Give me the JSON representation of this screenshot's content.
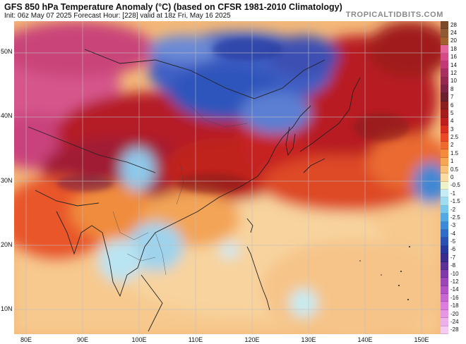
{
  "header": {
    "title": "GFS 850 hPa Temperature Anomaly (°C) (based on CFSR 1981-2010 Climatology)",
    "subtitle": "Init: 06z May 07 2025   Forecast Hour: [228]   valid at 18z Fri, May 16 2025",
    "brand": "TROPICALTIDBITS.COM"
  },
  "map": {
    "lat_labels": [
      "50N",
      "40N",
      "30N",
      "20N",
      "10N"
    ],
    "lon_labels": [
      "80E",
      "90E",
      "100E",
      "110E",
      "120E",
      "130E",
      "140E",
      "150E"
    ]
  },
  "colorbar": {
    "levels": [
      {
        "label": "28",
        "color": "#7a4a2a"
      },
      {
        "label": "24",
        "color": "#8f5a34"
      },
      {
        "label": "20",
        "color": "#a06030"
      },
      {
        "label": "18",
        "color": "#e2669a"
      },
      {
        "label": "16",
        "color": "#d54b86"
      },
      {
        "label": "14",
        "color": "#c23a73"
      },
      {
        "label": "12",
        "color": "#a8305f"
      },
      {
        "label": "10",
        "color": "#93294f"
      },
      {
        "label": "8",
        "color": "#7d2343"
      },
      {
        "label": "7",
        "color": "#6a1f2e"
      },
      {
        "label": "6",
        "color": "#8a1f1f"
      },
      {
        "label": "5",
        "color": "#a31d1d"
      },
      {
        "label": "4",
        "color": "#bd1f1f"
      },
      {
        "label": "3",
        "color": "#d7301f"
      },
      {
        "label": "2.5",
        "color": "#e84a25"
      },
      {
        "label": "2",
        "color": "#ef6a2e"
      },
      {
        "label": "1.5",
        "color": "#f48a3c"
      },
      {
        "label": "1",
        "color": "#f7a653"
      },
      {
        "label": "0.5",
        "color": "#f9c27a"
      },
      {
        "label": "0",
        "color": "#fbdba4"
      },
      {
        "label": "-0.5",
        "color": "#eef2c8"
      },
      {
        "label": "-1",
        "color": "#c4ecf4"
      },
      {
        "label": "-1.5",
        "color": "#9fdcf0"
      },
      {
        "label": "-2",
        "color": "#77c6ec"
      },
      {
        "label": "-2.5",
        "color": "#52a9e4"
      },
      {
        "label": "-3",
        "color": "#3b8ad8"
      },
      {
        "label": "-4",
        "color": "#2f6cc8"
      },
      {
        "label": "-5",
        "color": "#2a50b4"
      },
      {
        "label": "-6",
        "color": "#27399c"
      },
      {
        "label": "-7",
        "color": "#3a2c8c"
      },
      {
        "label": "-8",
        "color": "#5a3296"
      },
      {
        "label": "-10",
        "color": "#7d3aa8"
      },
      {
        "label": "-12",
        "color": "#9a45b8"
      },
      {
        "label": "-14",
        "color": "#b253c6"
      },
      {
        "label": "-16",
        "color": "#c866d2"
      },
      {
        "label": "-18",
        "color": "#da7ddc"
      },
      {
        "label": "-20",
        "color": "#e597e3"
      },
      {
        "label": "-24",
        "color": "#edb1ea"
      },
      {
        "label": "-28",
        "color": "#f4ccf1"
      }
    ]
  }
}
